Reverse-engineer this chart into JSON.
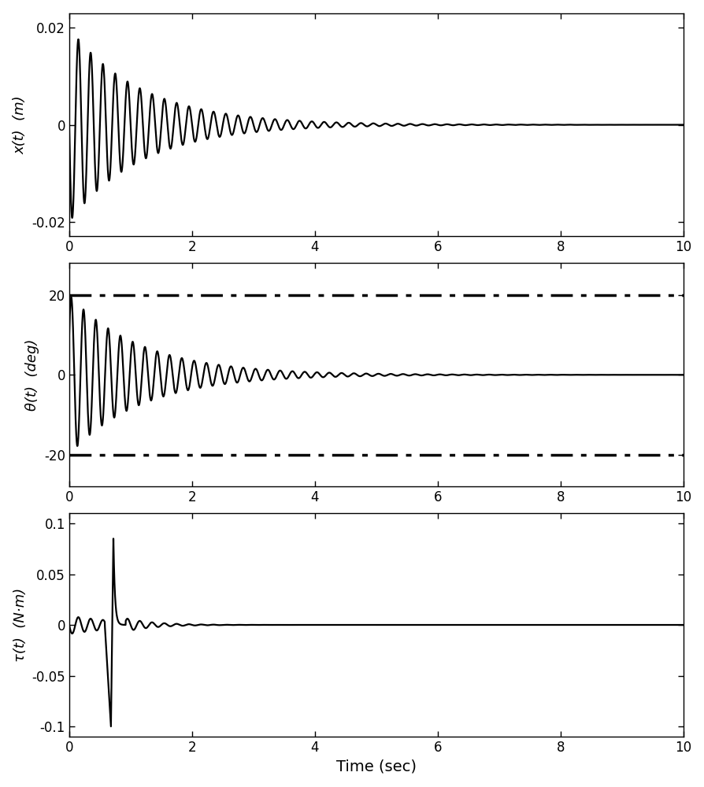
{
  "t_start": 0,
  "t_end": 10,
  "t_points": 10000,
  "plot1": {
    "ylabel": "x(t)  (m)",
    "ylim": [
      -0.023,
      0.023
    ],
    "yticks": [
      -0.02,
      0,
      0.02
    ],
    "ytick_labels": [
      "-0.02",
      "0",
      "0.02"
    ]
  },
  "plot2": {
    "ylabel": "θ(t)  (deg)",
    "ylim": [
      -28,
      28
    ],
    "yticks": [
      -20,
      0,
      20
    ],
    "ytick_labels": [
      "-20",
      "0",
      "20"
    ],
    "hline_pos": 20,
    "hline_neg": -20
  },
  "plot3": {
    "ylabel": "τ(t)  (N·m)",
    "ylim": [
      -0.11,
      0.11
    ],
    "yticks": [
      -0.1,
      -0.05,
      0,
      0.05,
      0.1
    ],
    "ytick_labels": [
      "-0.1",
      "-0.05",
      "0",
      "0.05",
      "0.1"
    ]
  },
  "xlabel": "Time (sec)",
  "xticks": [
    0,
    2,
    4,
    6,
    8,
    10
  ],
  "line_color": "#000000",
  "line_width": 1.6,
  "background_color": "#ffffff",
  "signal1": {
    "omega": 31.4,
    "decay": 0.85,
    "amplitude": 0.02
  },
  "signal2": {
    "omega": 31.4,
    "decay": 0.85,
    "amplitude": 20.0
  },
  "signal3": {
    "omega": 31.4,
    "decay": 1.1,
    "amplitude": 0.018,
    "spike_down_t": 0.58,
    "spike_up_t": 0.68,
    "spike_end_t": 0.72,
    "spike_min": -0.1,
    "spike_max": 0.085
  }
}
